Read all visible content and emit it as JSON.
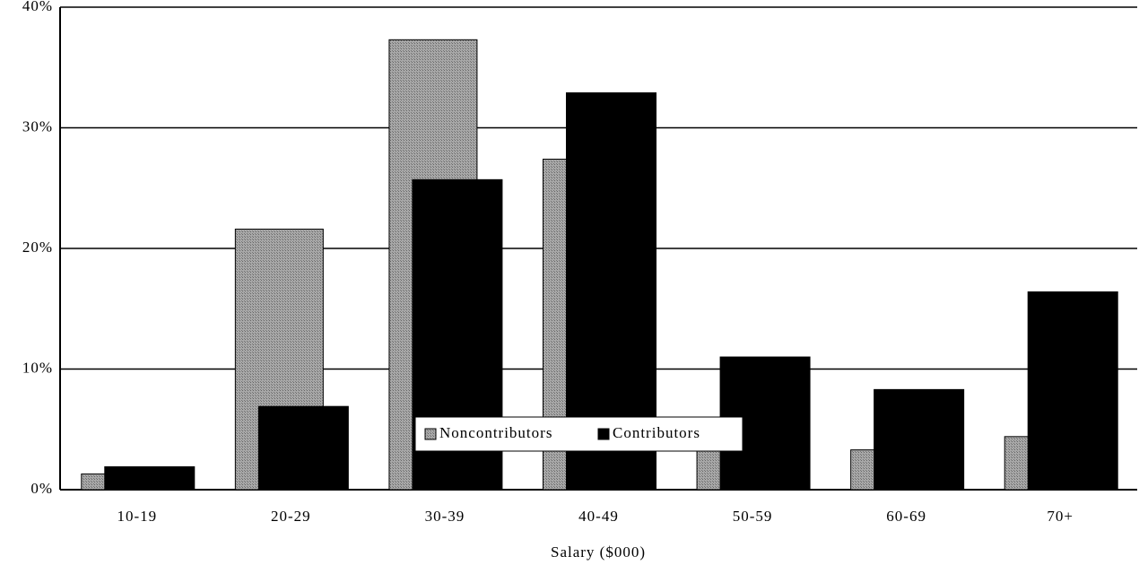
{
  "chart_data": {
    "type": "bar",
    "x_label": "Salary ($000)",
    "categories": [
      "10-19",
      "20-29",
      "30-39",
      "40-49",
      "50-59",
      "60-69",
      "70+"
    ],
    "series": [
      {
        "name": "Noncontributors",
        "color": "#9a9a9a",
        "values": [
          1.3,
          21.6,
          37.3,
          27.4,
          4,
          3.3,
          4.4
        ]
      },
      {
        "name": "Contributors",
        "color": "#000000",
        "values": [
          1.9,
          6.9,
          25.7,
          32.9,
          11.0,
          8.3,
          16.4
        ]
      }
    ],
    "ylim": [
      0,
      40
    ],
    "yticks": [
      {
        "value": 0,
        "label": "0%"
      },
      {
        "value": 10,
        "label": "10%"
      },
      {
        "value": 20,
        "label": "20%"
      },
      {
        "value": 30,
        "label": "30%"
      },
      {
        "value": 40,
        "label": "40%"
      }
    ],
    "grid": true,
    "legend": "center"
  }
}
